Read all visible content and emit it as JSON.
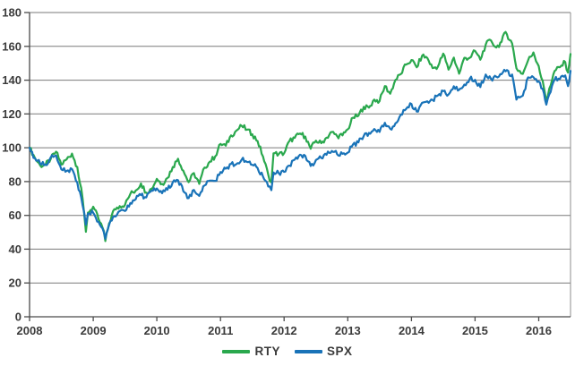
{
  "chart_data": {
    "type": "line",
    "title": "",
    "xlabel": "",
    "ylabel": "",
    "x_axis": {
      "tick_years": [
        2008,
        2009,
        2010,
        2011,
        2012,
        2013,
        2014,
        2015,
        2016
      ],
      "tick_labels": [
        "2008",
        "2009",
        "2010",
        "2011",
        "2012",
        "2013",
        "2014",
        "2015",
        "2016"
      ]
    },
    "y_axis": {
      "tick_values": [
        0,
        20,
        40,
        60,
        80,
        100,
        120,
        140,
        160,
        180
      ],
      "tick_labels": [
        "0",
        "20",
        "40",
        "60",
        "80",
        "100",
        "120",
        "140",
        "160",
        "180"
      ]
    },
    "layout": {
      "x_min": 2008,
      "x_max": 2016.5,
      "y_min": 0,
      "y_max": 180,
      "grid": true,
      "legend_position": "bottom",
      "render_noise": 1.5
    },
    "colors": {
      "rty": "#2aa84d",
      "spx": "#1973b8",
      "gridline": "#7a7a7a",
      "axis": "#4a4a4a",
      "border": "#8c8c8c",
      "label_text": "#3b3b3b"
    },
    "legend": {
      "entries": [
        {
          "label": "RTY",
          "color": "#2aa84d"
        },
        {
          "label": "SPX",
          "color": "#1973b8"
        }
      ]
    },
    "x": [
      2008.0,
      2008.083,
      2008.167,
      2008.25,
      2008.333,
      2008.417,
      2008.5,
      2008.583,
      2008.667,
      2008.75,
      2008.833,
      2008.885,
      2008.917,
      2009.0,
      2009.083,
      2009.167,
      2009.19,
      2009.25,
      2009.333,
      2009.417,
      2009.5,
      2009.583,
      2009.667,
      2009.75,
      2009.833,
      2009.917,
      2010.0,
      2010.083,
      2010.167,
      2010.25,
      2010.333,
      2010.417,
      2010.5,
      2010.583,
      2010.667,
      2010.75,
      2010.833,
      2010.917,
      2011.0,
      2011.083,
      2011.167,
      2011.25,
      2011.333,
      2011.417,
      2011.5,
      2011.583,
      2011.667,
      2011.75,
      2011.8,
      2011.833,
      2011.917,
      2012.0,
      2012.083,
      2012.167,
      2012.25,
      2012.333,
      2012.417,
      2012.5,
      2012.583,
      2012.667,
      2012.75,
      2012.833,
      2012.917,
      2013.0,
      2013.083,
      2013.167,
      2013.25,
      2013.333,
      2013.417,
      2013.5,
      2013.583,
      2013.667,
      2013.75,
      2013.833,
      2013.917,
      2014.0,
      2014.083,
      2014.167,
      2014.25,
      2014.333,
      2014.417,
      2014.5,
      2014.583,
      2014.667,
      2014.75,
      2014.833,
      2014.917,
      2015.0,
      2015.083,
      2015.167,
      2015.25,
      2015.333,
      2015.417,
      2015.48,
      2015.583,
      2015.65,
      2015.75,
      2015.833,
      2015.917,
      2016.0,
      2016.083,
      2016.12,
      2016.167,
      2016.25,
      2016.333,
      2016.417,
      2016.46,
      2016.5
    ],
    "series": [
      {
        "name": "RTY",
        "values": [
          100,
          94.1,
          89.5,
          89.8,
          93.5,
          97.7,
          90.0,
          93.2,
          96.5,
          88.6,
          70.1,
          50.3,
          61.7,
          65.1,
          57.9,
          50.8,
          44.8,
          55.2,
          63.7,
          65.5,
          66.3,
          72.7,
          74.7,
          78.9,
          73.5,
          75.7,
          81.6,
          78.6,
          82.1,
          88.6,
          93.5,
          86.4,
          79.6,
          85.0,
          78.6,
          88.3,
          91.8,
          94.9,
          102.3,
          101.2,
          107.3,
          110.1,
          113.0,
          110.7,
          108.0,
          104.0,
          94.9,
          84.1,
          79.5,
          96.7,
          96.3,
          96.7,
          104.0,
          105.9,
          108.4,
          106.6,
          99.4,
          104.2,
          102.7,
          106.0,
          109.3,
          106.9,
          107.3,
          110.9,
          117.8,
          118.9,
          124.2,
          123.7,
          128.5,
          127.6,
          136.5,
          132.0,
          140.2,
          143.6,
          149.2,
          151.9,
          147.6,
          154.4,
          153.1,
          147.1,
          148.1,
          155.7,
          146.2,
          153.3,
          143.8,
          153.2,
          153.2,
          157.3,
          152.1,
          161.0,
          163.5,
          159.3,
          162.7,
          168.5,
          161.7,
          147.0,
          143.7,
          151.7,
          156.4,
          148.3,
          135.2,
          127.5,
          135.0,
          145.4,
          147.6,
          150.7,
          144.5,
          155.5
        ]
      },
      {
        "name": "SPX",
        "values": [
          100,
          93.9,
          90.6,
          90.1,
          94.4,
          95.4,
          87.2,
          86.3,
          87.4,
          79.4,
          66.0,
          54.5,
          61.0,
          61.5,
          56.2,
          50.1,
          46.1,
          54.3,
          59.4,
          62.6,
          62.6,
          67.3,
          69.5,
          72.0,
          70.6,
          74.6,
          75.9,
          73.1,
          75.2,
          79.6,
          80.8,
          74.2,
          70.2,
          75.0,
          71.5,
          77.7,
          80.6,
          80.4,
          85.6,
          87.6,
          90.4,
          90.3,
          92.9,
          91.6,
          89.9,
          88.0,
          83.0,
          77.1,
          74.9,
          85.4,
          84.9,
          85.7,
          89.4,
          93.0,
          95.9,
          95.2,
          89.2,
          92.8,
          93.9,
          95.8,
          98.1,
          96.2,
          96.4,
          97.1,
          102.0,
          103.2,
          106.9,
          108.8,
          111.1,
          109.4,
          114.8,
          111.2,
          114.5,
          119.6,
          123.0,
          125.9,
          121.4,
          126.6,
          127.5,
          128.3,
          131.0,
          133.5,
          131.5,
          136.4,
          134.3,
          137.4,
          140.8,
          140.2,
          135.9,
          143.3,
          140.8,
          142.0,
          143.5,
          145.2,
          143.3,
          128.5,
          130.8,
          141.6,
          141.7,
          139.2,
          132.1,
          125.5,
          131.6,
          140.3,
          140.7,
          142.8,
          136.5,
          145.5
        ]
      }
    ]
  }
}
